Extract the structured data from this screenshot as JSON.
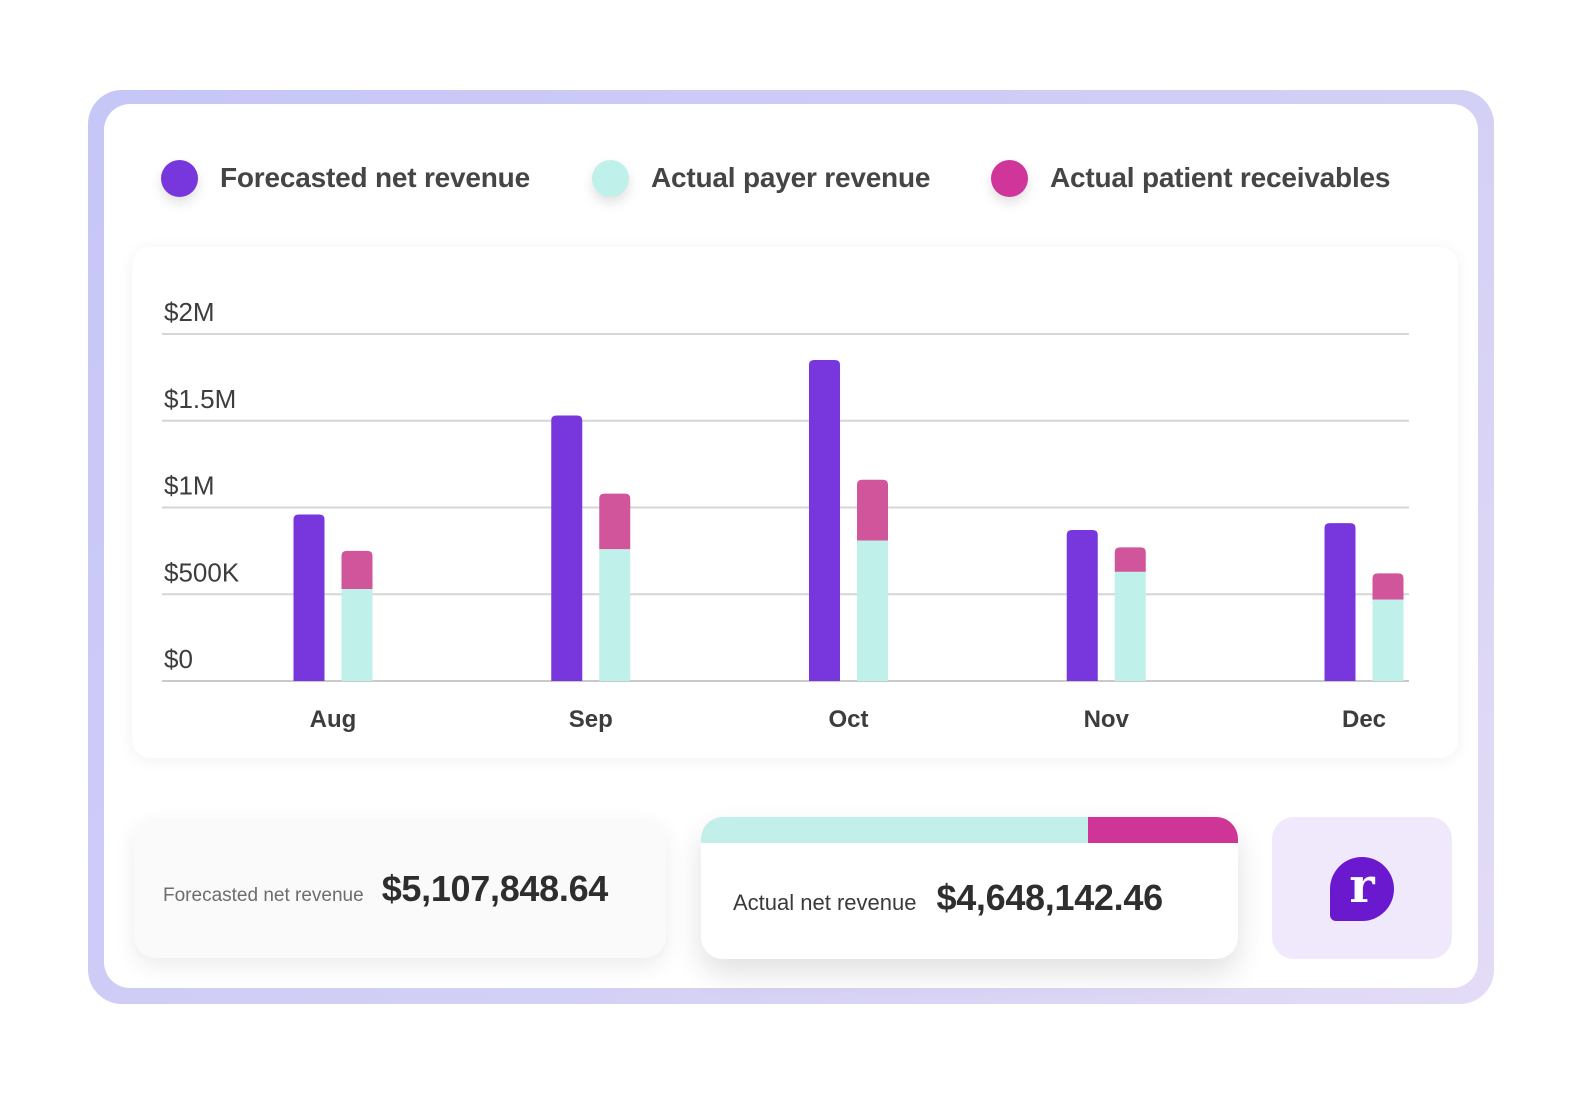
{
  "legend": [
    {
      "label": "Forecasted net revenue",
      "color": "#7837dc"
    },
    {
      "label": "Actual payer revenue",
      "color": "#bff0ea"
    },
    {
      "label": "Actual patient receivables",
      "color": "#d0359a"
    }
  ],
  "chart_data": {
    "type": "bar",
    "categories": [
      "Aug",
      "Sep",
      "Oct",
      "Nov",
      "Dec"
    ],
    "series": [
      {
        "name": "Forecasted net revenue",
        "stack": "forecast",
        "color": "#7837dc",
        "values": [
          960000,
          1530000,
          1850000,
          870000,
          910000
        ]
      },
      {
        "name": "Actual payer revenue",
        "stack": "actual",
        "color": "#bff0ea",
        "values": [
          530000,
          760000,
          810000,
          630000,
          470000
        ]
      },
      {
        "name": "Actual patient receivables",
        "stack": "actual",
        "color": "#d0559b",
        "values": [
          220000,
          320000,
          350000,
          140000,
          150000
        ]
      }
    ],
    "yticks": [
      "$0",
      "$500K",
      "$1M",
      "$1.5M",
      "$2M"
    ],
    "ytick_values": [
      0,
      500000,
      1000000,
      1500000,
      2000000
    ],
    "ylim": [
      0,
      2000000
    ],
    "grid": true,
    "legend_position": "top"
  },
  "cards": {
    "forecast": {
      "label": "Forecasted net revenue",
      "value": "$5,107,848.64"
    },
    "actual": {
      "label": "Actual net revenue",
      "value": "$4,648,142.46",
      "payer_share": 0.72,
      "payer_color": "#c2efe9",
      "patient_color": "#cf3597"
    }
  },
  "logo": {
    "icon": "logo-r-icon",
    "glyph": "r",
    "color": "#6b19cf"
  }
}
